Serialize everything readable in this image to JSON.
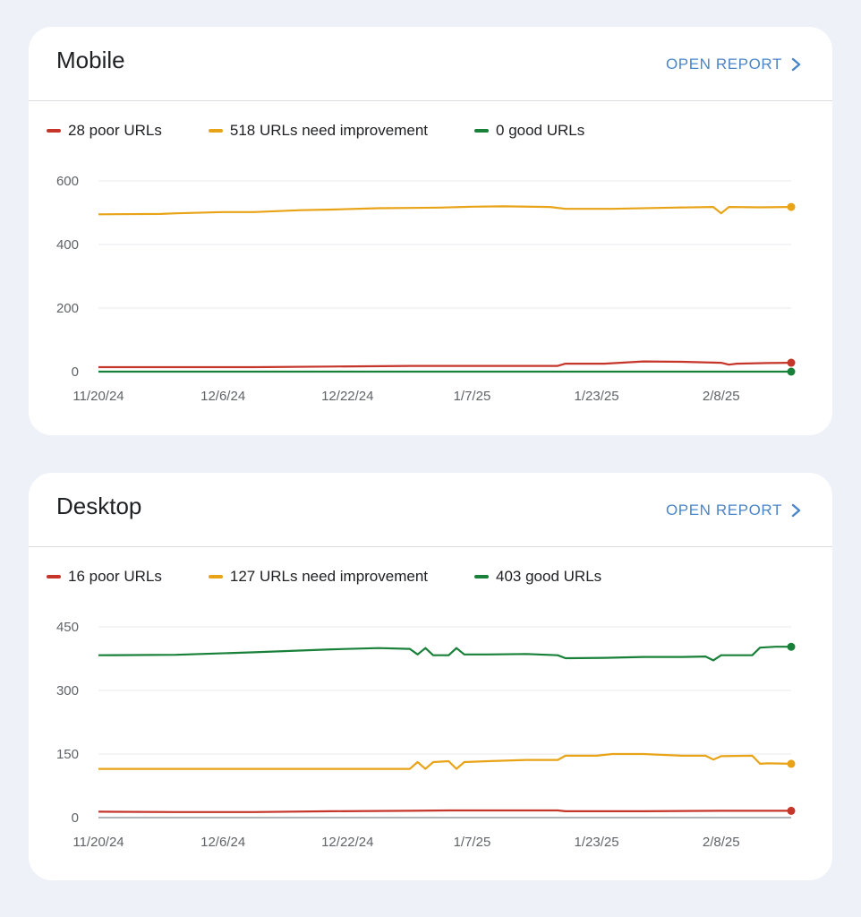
{
  "cards": [
    {
      "id": "mobile",
      "title": "Mobile",
      "open_report_label": "OPEN REPORT",
      "legend": [
        {
          "label": "28 poor URLs",
          "color": "#c5352a"
        },
        {
          "label": "518 URLs need improvement",
          "color": "#e8a317"
        },
        {
          "label": "0 good URLs",
          "color": "#188038"
        }
      ]
    },
    {
      "id": "desktop",
      "title": "Desktop",
      "open_report_label": "OPEN REPORT",
      "legend": [
        {
          "label": "16 poor URLs",
          "color": "#c5352a"
        },
        {
          "label": "127 URLs need improvement",
          "color": "#e8a317"
        },
        {
          "label": "403 good URLs",
          "color": "#188038"
        }
      ]
    }
  ],
  "chart_data": [
    {
      "type": "line",
      "title": "Mobile",
      "xlabel": "",
      "ylabel": "",
      "x_tick_labels": [
        "11/20/24",
        "12/6/24",
        "12/22/24",
        "1/7/25",
        "1/23/25",
        "2/8/25"
      ],
      "x_tick_index": [
        0,
        16,
        32,
        48,
        64,
        80
      ],
      "y_ticks": [
        0,
        200,
        400,
        600
      ],
      "ylim": [
        0,
        600
      ],
      "grid": true,
      "legend_position": "top-left",
      "x_start": "11/20/24",
      "x_end": "2/17/25",
      "series": [
        {
          "name": "28 poor URLs",
          "color": "#c5352a",
          "points": [
            [
              0,
              14
            ],
            [
              10,
              14
            ],
            [
              20,
              14
            ],
            [
              30,
              16
            ],
            [
              40,
              18
            ],
            [
              50,
              18
            ],
            [
              59,
              18
            ],
            [
              60,
              25
            ],
            [
              65,
              25
            ],
            [
              70,
              32
            ],
            [
              75,
              31
            ],
            [
              80,
              28
            ],
            [
              81,
              22
            ],
            [
              82,
              25
            ],
            [
              86,
              27
            ],
            [
              89,
              28
            ]
          ]
        },
        {
          "name": "518 URLs need improvement",
          "color": "#e8a317",
          "points": [
            [
              0,
              495
            ],
            [
              8,
              496
            ],
            [
              10,
              498
            ],
            [
              16,
              502
            ],
            [
              20,
              502
            ],
            [
              26,
              508
            ],
            [
              30,
              510
            ],
            [
              36,
              514
            ],
            [
              40,
              515
            ],
            [
              44,
              516
            ],
            [
              48,
              519
            ],
            [
              52,
              520
            ],
            [
              58,
              518
            ],
            [
              60,
              512
            ],
            [
              66,
              512
            ],
            [
              74,
              516
            ],
            [
              79,
              518
            ],
            [
              80,
              498
            ],
            [
              81,
              518
            ],
            [
              85,
              517
            ],
            [
              89,
              518
            ]
          ]
        },
        {
          "name": "0 good URLs",
          "color": "#188038",
          "points": [
            [
              0,
              0
            ],
            [
              89,
              0
            ]
          ]
        }
      ]
    },
    {
      "type": "line",
      "title": "Desktop",
      "xlabel": "",
      "ylabel": "",
      "x_tick_labels": [
        "11/20/24",
        "12/6/24",
        "12/22/24",
        "1/7/25",
        "1/23/25",
        "2/8/25"
      ],
      "x_tick_index": [
        0,
        16,
        32,
        48,
        64,
        80
      ],
      "y_ticks": [
        0,
        150,
        300,
        450
      ],
      "ylim": [
        0,
        450
      ],
      "grid": true,
      "legend_position": "top-left",
      "x_start": "11/20/24",
      "x_end": "2/17/25",
      "series": [
        {
          "name": "16 poor URLs",
          "color": "#c5352a",
          "points": [
            [
              0,
              14
            ],
            [
              10,
              13
            ],
            [
              20,
              13
            ],
            [
              30,
              15
            ],
            [
              40,
              16
            ],
            [
              45,
              17
            ],
            [
              59,
              17
            ],
            [
              60,
              15
            ],
            [
              70,
              15
            ],
            [
              80,
              16
            ],
            [
              89,
              16
            ]
          ]
        },
        {
          "name": "127 URLs need improvement",
          "color": "#e8a317",
          "points": [
            [
              0,
              115
            ],
            [
              10,
              115
            ],
            [
              20,
              115
            ],
            [
              30,
              115
            ],
            [
              40,
              115
            ],
            [
              41,
              131
            ],
            [
              42,
              115
            ],
            [
              43,
              131
            ],
            [
              45,
              133
            ],
            [
              46,
              115
            ],
            [
              47,
              131
            ],
            [
              50,
              133
            ],
            [
              55,
              136
            ],
            [
              59,
              136
            ],
            [
              60,
              146
            ],
            [
              64,
              146
            ],
            [
              66,
              150
            ],
            [
              70,
              150
            ],
            [
              75,
              146
            ],
            [
              78,
              146
            ],
            [
              79,
              137
            ],
            [
              80,
              145
            ],
            [
              84,
              146
            ],
            [
              85,
              127
            ],
            [
              86,
              128
            ],
            [
              89,
              127
            ]
          ]
        },
        {
          "name": "403 good URLs",
          "color": "#188038",
          "points": [
            [
              0,
              383
            ],
            [
              10,
              384
            ],
            [
              20,
              390
            ],
            [
              30,
              397
            ],
            [
              36,
              400
            ],
            [
              40,
              398
            ],
            [
              41,
              385
            ],
            [
              42,
              400
            ],
            [
              43,
              383
            ],
            [
              45,
              383
            ],
            [
              46,
              400
            ],
            [
              47,
              385
            ],
            [
              50,
              385
            ],
            [
              55,
              386
            ],
            [
              59,
              383
            ],
            [
              60,
              376
            ],
            [
              65,
              377
            ],
            [
              70,
              379
            ],
            [
              75,
              379
            ],
            [
              78,
              380
            ],
            [
              79,
              371
            ],
            [
              80,
              383
            ],
            [
              84,
              383
            ],
            [
              85,
              401
            ],
            [
              87,
              403
            ],
            [
              89,
              403
            ]
          ]
        }
      ]
    }
  ]
}
